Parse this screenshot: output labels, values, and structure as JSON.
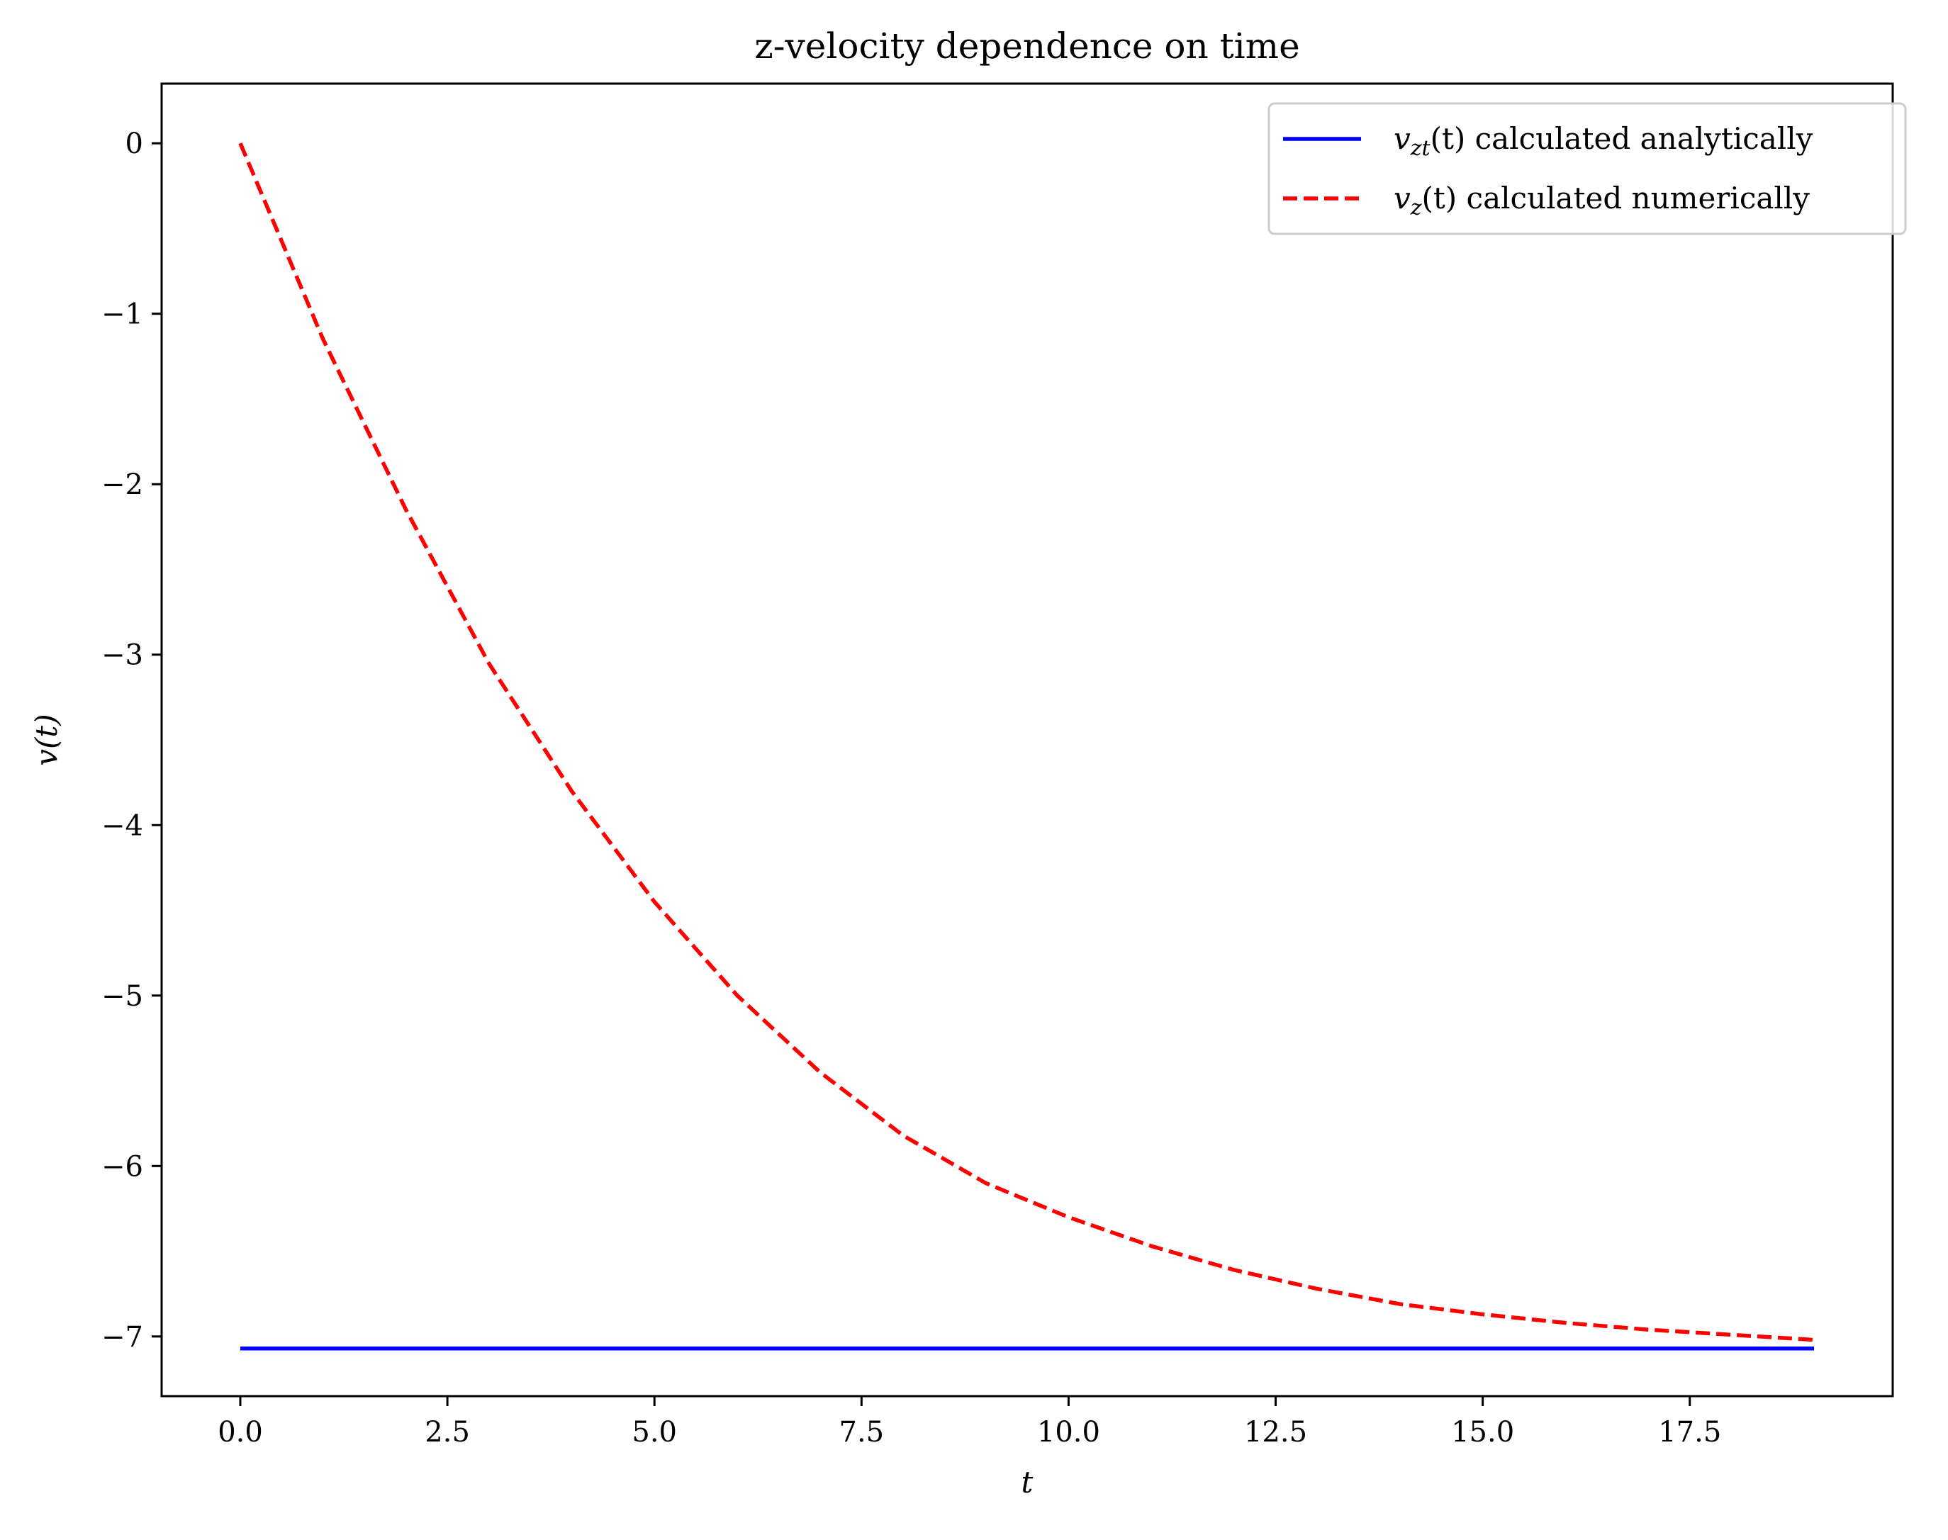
{
  "chart_data": {
    "type": "line",
    "title": "z-velocity dependence on time",
    "xlabel": "t",
    "ylabel": "v(t)",
    "xlim": [
      -0.95,
      19.95
    ],
    "ylim": [
      -7.35,
      0.35
    ],
    "xticks": [
      0.0,
      2.5,
      5.0,
      7.5,
      10.0,
      12.5,
      15.0,
      17.5
    ],
    "xtick_labels": [
      "0.0",
      "2.5",
      "5.0",
      "7.5",
      "10.0",
      "12.5",
      "15.0",
      "17.5"
    ],
    "yticks": [
      0,
      -1,
      -2,
      -3,
      -4,
      -5,
      -6,
      -7
    ],
    "ytick_labels": [
      "0",
      "−1",
      "−2",
      "−3",
      "−4",
      "−5",
      "−6",
      "−7"
    ],
    "grid": false,
    "legend_position": "top-right",
    "series": [
      {
        "name": "v_zt(t) calculated analytically",
        "legend": {
          "symbol": "v",
          "sub": "zt",
          "rest": "(t) calculated analytically"
        },
        "color": "#0000ff",
        "style": "solid",
        "x": [
          0,
          19
        ],
        "y": [
          -7.07,
          -7.07
        ]
      },
      {
        "name": "v_z(t) calculated numerically",
        "legend": {
          "symbol": "v",
          "sub": "z",
          "rest": "(t) calculated numerically"
        },
        "color": "#ff0000",
        "style": "dashed",
        "x": [
          0,
          1,
          2,
          3,
          4,
          5,
          6,
          7,
          8,
          9,
          10,
          11,
          12,
          13,
          14,
          15,
          16,
          17,
          18,
          19
        ],
        "y": [
          0,
          -1.15,
          -2.15,
          -3.05,
          -3.8,
          -4.45,
          -5.0,
          -5.45,
          -5.82,
          -6.1,
          -6.3,
          -6.47,
          -6.61,
          -6.72,
          -6.81,
          -6.87,
          -6.92,
          -6.96,
          -6.99,
          -7.02
        ]
      }
    ]
  }
}
